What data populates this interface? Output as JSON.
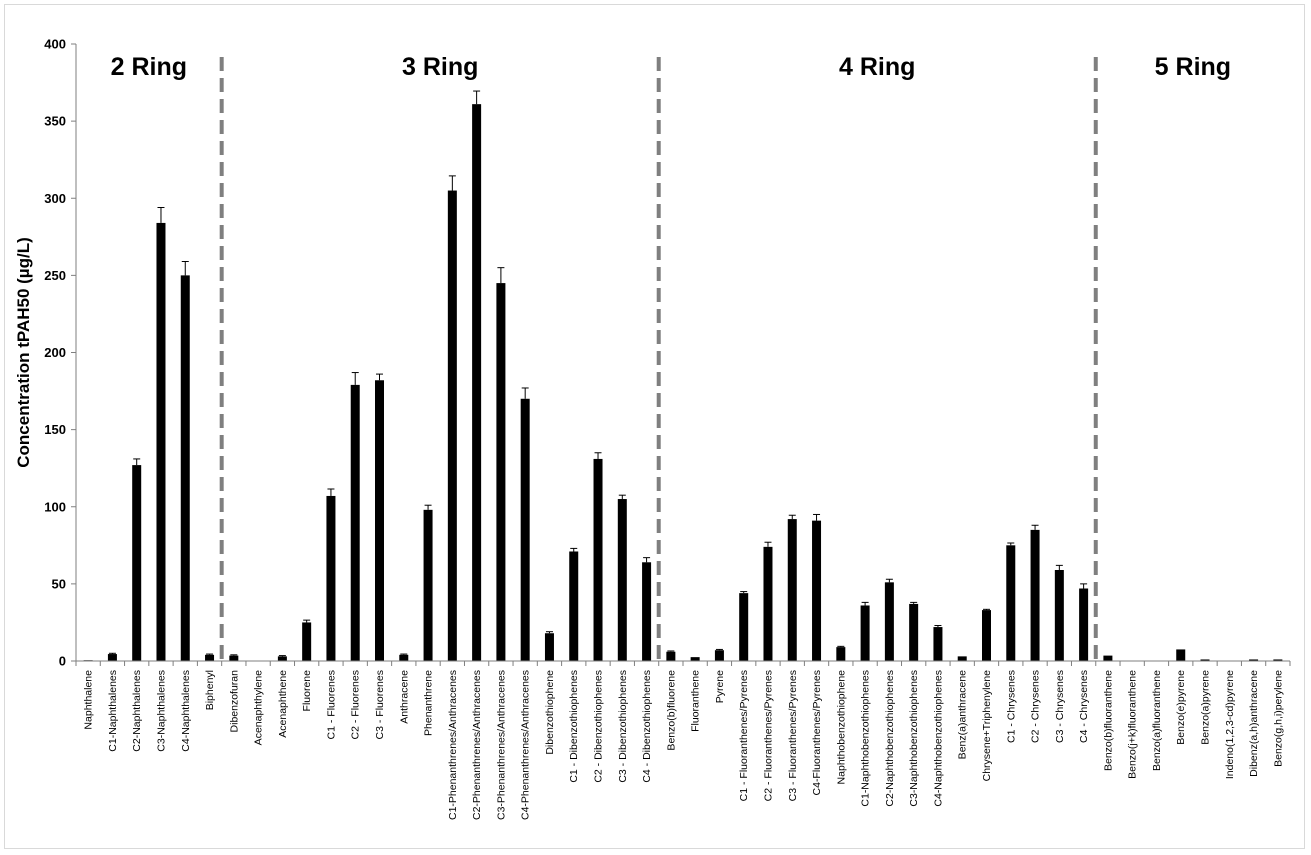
{
  "chart_data": {
    "type": "bar",
    "ylabel": "Concentration tPAH50 (µg/L)",
    "ylim": [
      0,
      400
    ],
    "yticks": [
      0,
      50,
      100,
      150,
      200,
      250,
      300,
      350,
      400
    ],
    "grid": false,
    "bar_color": "#000000",
    "divider_color": "#7f7f7f",
    "categories": [
      "Naphthalene",
      "C1-Naphthalenes",
      "C2-Naphthalenes",
      "C3-Naphthalenes",
      "C4-Naphthalenes",
      "Biphenyl",
      "Dibenzofuran",
      "Acenaphthylene",
      "Acenaphthene",
      "Fluorene",
      "C1 - Fluorenes",
      "C2 - Fluorenes",
      "C3 - Fluorenes",
      "Anthracene",
      "Phenanthrene",
      "C1-Phenanthrenes/Anthracenes",
      "C2-Phenanthrenes/Anthracenes",
      "C3-Phenanthrenes/Anthracenes",
      "C4-Phenanthrenes/Anthracenes",
      "Dibenzothiophene",
      "C1 - Dibenzothiophenes",
      "C2 - Dibenzothiophenes",
      "C3 - Dibenzothiophenes",
      "C4 - Dibenzothiophenes",
      "Benzo(b)fluorene",
      "Fluoranthene",
      "Pyrene",
      "C1 - Fluoranthenes/Pyrenes",
      "C2 - Fluoranthenes/Pyrenes",
      "C3 - Fluoranthenes/Pyrenes",
      "C4-Fluoranthenes/Pyrenes",
      "Naphthobenzothiophene",
      "C1-Naphthobenzothiophenes",
      "C2-Naphthobenzothiophenes",
      "C3-Naphthobenzothiophenes",
      "C4-Naphthobenzothiophenes",
      "Benz(a)anthracene",
      "Chrysene+Triphenylene",
      "C1 - Chrysenes",
      "C2 - Chrysenes",
      "C3 - Chrysenes",
      "C4 - Chrysenes",
      "Benzo(b)fluoranthene",
      "Benzo(j+k)fluoranthene",
      "Benzo(a)fluoranthene",
      "Benzo(e)pyrene",
      "Benzo(a)pyrene",
      "Indeno(1,2,3-cd)pyrene",
      "Dibenz(a,h)anthracene",
      "Benzo(g,h,i)perylene"
    ],
    "values": [
      0.5,
      4.5,
      127,
      284,
      250,
      4,
      3.5,
      0,
      3,
      25,
      107,
      179,
      182,
      4,
      98,
      305,
      361,
      245,
      170,
      18,
      71,
      131,
      105,
      64,
      6,
      2.5,
      7,
      44,
      74,
      92,
      91,
      9,
      36,
      51,
      37,
      22,
      3,
      33,
      75,
      85,
      59,
      47,
      3.5,
      0,
      0,
      7.5,
      1,
      0,
      1,
      1
    ],
    "errors": [
      0,
      0.5,
      4,
      10,
      9,
      0.5,
      0.5,
      0,
      0.5,
      1.5,
      4.5,
      8,
      4,
      0.5,
      3,
      9.5,
      8.5,
      10,
      7,
      1,
      2,
      4,
      2.5,
      3,
      0.5,
      0,
      0.5,
      1,
      3,
      2.5,
      4,
      0.5,
      2,
      2,
      1,
      1,
      0,
      0.5,
      1.5,
      3,
      3,
      3,
      0,
      0,
      0,
      0,
      0,
      0,
      0,
      0
    ],
    "groups": [
      {
        "label": "2 Ring"
      },
      {
        "label": "3 Ring"
      },
      {
        "label": "4 Ring"
      },
      {
        "label": "5 Ring"
      }
    ],
    "divider_after_index": [
      5,
      23,
      41
    ]
  }
}
